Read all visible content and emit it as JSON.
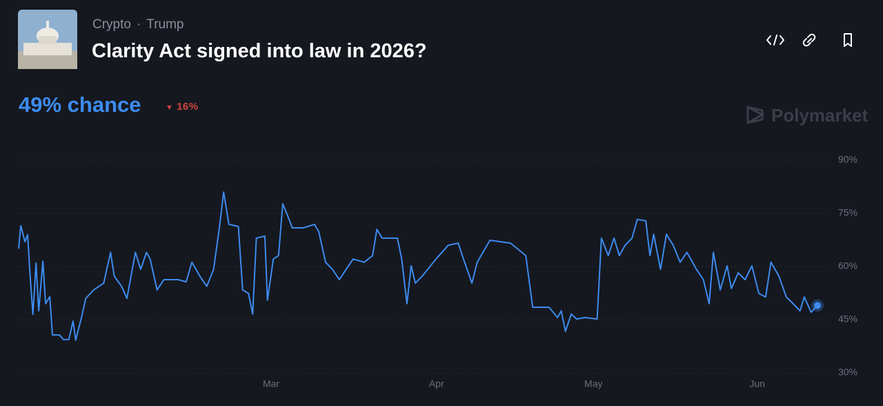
{
  "header": {
    "tags": [
      "Crypto",
      "Trump"
    ],
    "title": "Clarity Act signed into law in 2026?",
    "chance": "49% chance",
    "change": "16%",
    "brand": "Polymarket"
  },
  "chart_data": {
    "type": "line",
    "color": "#3d8bef",
    "x": [
      0,
      0.4,
      1.2,
      1.7,
      2.2,
      2.7,
      3.3,
      3.8,
      4.6,
      5.1,
      5.9,
      6.4,
      7.7,
      8.5,
      9.5,
      10.3,
      10.8,
      11.9,
      12.7,
      14.2,
      16.1,
      17.4,
      18.1,
      19.5,
      20.5,
      22.1,
      23.1,
      24.2,
      24.9,
      26.2,
      27.5,
      30.2,
      31.7,
      32.8,
      34.3,
      35.6,
      36.9,
      38,
      38.8,
      39.8,
      41.6,
      42.4,
      43.5,
      44.3,
      45,
      46.6,
      47.1,
      48.2,
      49.2,
      50,
      51.3,
      51.8,
      53.9,
      56,
      56.8,
      58.1,
      59.4,
      60.7,
      62,
      63.3,
      65.4,
      67,
      67.8,
      68.8,
      71.7,
      72.5,
      73.5,
      74.3,
      75.1,
      76.4,
      79,
      81.3,
      83.2,
      84.2,
      85.8,
      86.8,
      89.2,
      93.1,
      96,
      97.3,
      100.4,
      102,
      102.7,
      103.5,
      104.6,
      105.6,
      107.2,
      109.5,
      110.3,
      111.6,
      112.7,
      113.7,
      114.8,
      116.1,
      117.1,
      118.7,
      119.5,
      120.2,
      121.5,
      122.6,
      123.9,
      125.2,
      126.5,
      128.3,
      129.6,
      130.7,
      131.5,
      132.8,
      134.1,
      134.9,
      136.2,
      137.5,
      138.8,
      140.1,
      141.4,
      142.4,
      143.9,
      145.3,
      146.6,
      147.9,
      148.7,
      150,
      151.2
    ],
    "values": [
      65,
      71.5,
      67,
      69,
      57,
      46.5,
      61,
      47.5,
      61.5,
      49.5,
      51.5,
      40.7,
      40.7,
      39.4,
      39.4,
      44.6,
      39.2,
      45.6,
      51,
      53.4,
      55.3,
      64,
      57.3,
      54.4,
      51,
      64,
      59.2,
      64,
      62.1,
      53.4,
      56.3,
      56.3,
      55.7,
      61.2,
      57.3,
      54.4,
      59.2,
      70.9,
      81,
      71.9,
      71.3,
      53.4,
      52.4,
      46.6,
      68,
      68.6,
      50.5,
      62.1,
      63.1,
      77.7,
      72.9,
      70.9,
      70.9,
      71.9,
      69.9,
      61.2,
      59.2,
      56.3,
      59.2,
      62.1,
      61.2,
      63.1,
      70.5,
      68,
      68,
      62.1,
      49.5,
      60.2,
      55.3,
      57.3,
      62.1,
      66,
      66.6,
      62.1,
      55.3,
      61.2,
      67.4,
      66.6,
      63.1,
      48.5,
      48.5,
      45.6,
      47.5,
      41.7,
      46.6,
      45.2,
      45.6,
      45.2,
      68,
      63.1,
      68,
      63.1,
      66,
      68,
      73.3,
      72.9,
      63.1,
      69.1,
      59.2,
      69.1,
      66,
      61.2,
      64,
      59.2,
      56.3,
      49.5,
      64,
      53.4,
      60.2,
      53.8,
      58.2,
      56.3,
      60.2,
      52.4,
      51.4,
      61.2,
      57.3,
      51.4,
      49.5,
      47.5,
      51.4,
      47.1,
      49
    ],
    "xlim": [
      0,
      151.2
    ],
    "xticks": [
      {
        "value": 47.8,
        "label": "Mar"
      },
      {
        "value": 79.1,
        "label": "Apr"
      },
      {
        "value": 108.8,
        "label": "May"
      },
      {
        "value": 139.8,
        "label": "Jun"
      }
    ],
    "ylim": [
      30,
      90
    ],
    "yticks": [
      {
        "value": 30,
        "label": "30%"
      },
      {
        "value": 45,
        "label": "45%"
      },
      {
        "value": 60,
        "label": "60%"
      },
      {
        "value": 75,
        "label": "75%"
      },
      {
        "value": 90,
        "label": "90%"
      }
    ],
    "grid": true
  }
}
